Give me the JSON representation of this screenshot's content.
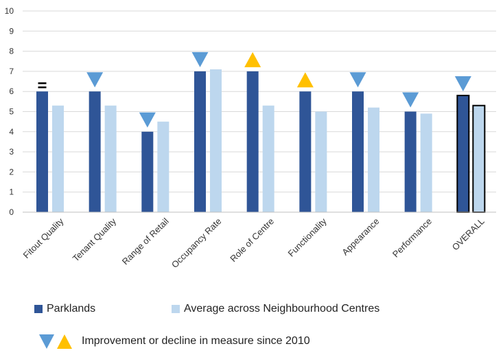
{
  "chart_data": {
    "type": "bar",
    "categories": [
      "Fitout Quality",
      "Tenant Quality",
      "Range of Retail",
      "Occupancy Rate",
      "Role of Centre",
      "Functionality",
      "Appearance",
      "Performance",
      "OVERALL"
    ],
    "series": [
      {
        "name": "Parklands",
        "values": [
          6,
          6,
          4,
          7,
          7,
          6,
          6,
          5,
          5.8
        ],
        "color": "#2F5597"
      },
      {
        "name": "Average across Neighbourhood Centres",
        "values": [
          5.3,
          5.3,
          4.5,
          7.1,
          5.3,
          5.0,
          5.2,
          4.9,
          5.3
        ],
        "color": "#BDD7EE"
      }
    ],
    "change_markers": [
      "equal",
      "down",
      "down",
      "down",
      "up",
      "up",
      "down",
      "down",
      "down"
    ],
    "marker_colors": {
      "down": "#5B9BD5",
      "up": "#FFC000",
      "equal": "#000000"
    },
    "ylim": [
      0,
      10
    ],
    "yticks": [
      "0",
      "1",
      "2",
      "3",
      "4",
      "5",
      "6",
      "7",
      "8",
      "9",
      "10"
    ],
    "xlabel": "",
    "ylabel": "",
    "grid": true
  },
  "legend": {
    "series_labels": [
      "Parklands",
      "Average across Neighbourhood Centres"
    ],
    "marker_label": "Improvement or decline in measure since 2010"
  }
}
